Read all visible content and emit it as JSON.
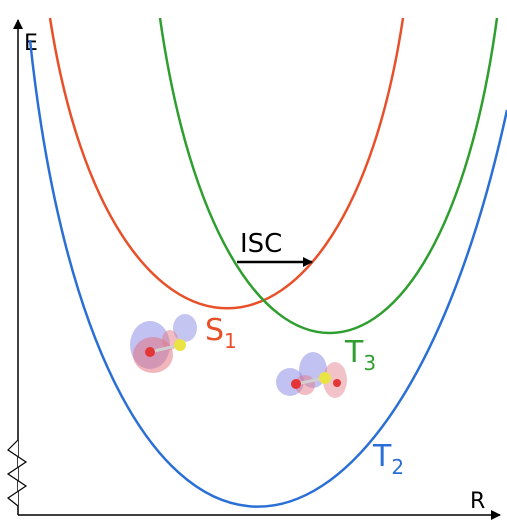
{
  "axes": {
    "y_label": "E",
    "x_label": "R"
  },
  "transition": {
    "label": "ISC"
  },
  "states": [
    {
      "letter": "S",
      "sub": "1",
      "color": "#e8502a"
    },
    {
      "letter": "T",
      "sub": "3",
      "color": "#2e9e2e"
    },
    {
      "letter": "T",
      "sub": "2",
      "color": "#2a6fd6"
    }
  ]
}
